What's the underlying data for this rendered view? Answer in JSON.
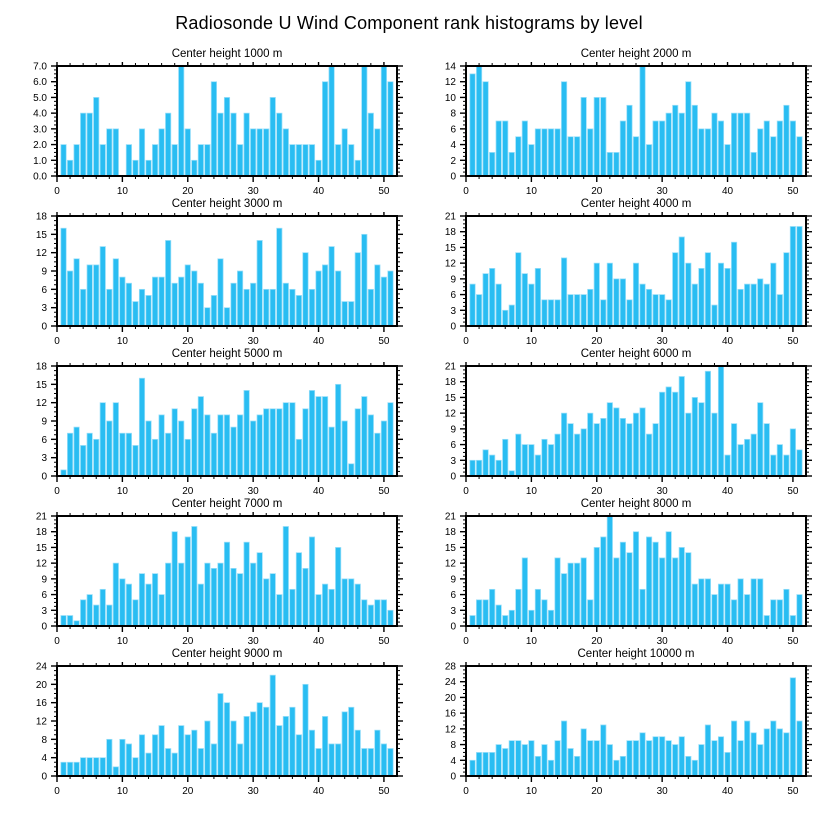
{
  "page_title": "Radiosonde U Wind Component rank histograms by level",
  "colors": {
    "bar": "#29BDF2",
    "bar_edge": "#9ADFF9",
    "axis": "#000000"
  },
  "chart_data": [
    {
      "type": "bar",
      "title": "Center height 1000 m",
      "xlabel": "",
      "ylabel": "",
      "xlim": [
        0,
        52
      ],
      "xticks": [
        0,
        10,
        20,
        30,
        40,
        50
      ],
      "x_minor_step": 2,
      "ylim": [
        0,
        7
      ],
      "ytick_labels": [
        "0.0",
        "1.0",
        "2.0",
        "3.0",
        "4.0",
        "5.0",
        "6.0",
        "7.0"
      ],
      "grid": false,
      "legend": false,
      "categories_note": "ranks 1-51",
      "values": [
        2,
        1,
        2,
        4,
        4,
        5,
        2,
        3,
        3,
        0,
        2,
        1,
        3,
        1,
        2,
        3,
        4,
        2,
        7,
        3,
        1,
        2,
        2,
        6,
        4,
        5,
        4,
        2,
        4,
        3,
        3,
        3,
        5,
        4,
        3,
        2,
        2,
        2,
        2,
        1,
        6,
        7,
        2,
        3,
        2,
        1,
        7,
        4,
        3,
        7,
        6
      ]
    },
    {
      "type": "bar",
      "title": "Center height 2000 m",
      "xlabel": "",
      "ylabel": "",
      "xlim": [
        0,
        52
      ],
      "xticks": [
        0,
        10,
        20,
        30,
        40,
        50
      ],
      "x_minor_step": 2,
      "ylim": [
        0,
        14
      ],
      "ytick_labels": [
        "0",
        "2",
        "4",
        "6",
        "8",
        "10",
        "12",
        "14"
      ],
      "grid": false,
      "legend": false,
      "values": [
        13,
        14,
        12,
        3,
        7,
        7,
        3,
        5,
        7,
        4,
        6,
        6,
        6,
        6,
        12,
        5,
        5,
        10,
        6,
        10,
        10,
        3,
        3,
        7,
        9,
        5,
        14,
        4,
        7,
        7,
        8,
        9,
        8,
        12,
        9,
        6,
        6,
        8,
        7,
        4,
        8,
        8,
        8,
        3,
        6,
        7,
        5,
        7,
        9,
        7,
        5
      ]
    },
    {
      "type": "bar",
      "title": "Center height 3000 m",
      "xlabel": "",
      "ylabel": "",
      "xlim": [
        0,
        52
      ],
      "xticks": [
        0,
        10,
        20,
        30,
        40,
        50
      ],
      "x_minor_step": 2,
      "ylim": [
        0,
        18
      ],
      "ytick_labels": [
        "0",
        "3",
        "6",
        "9",
        "12",
        "15",
        "18"
      ],
      "grid": false,
      "legend": false,
      "values": [
        16,
        9,
        11,
        6,
        10,
        10,
        13,
        6,
        11,
        8,
        7,
        4,
        6,
        5,
        8,
        8,
        14,
        7,
        8,
        10,
        9,
        7,
        3,
        5,
        11,
        3,
        7,
        9,
        6,
        7,
        14,
        6,
        6,
        16,
        7,
        6,
        5,
        12,
        6,
        9,
        10,
        13,
        9,
        4,
        4,
        12,
        15,
        6,
        10,
        8,
        9
      ]
    },
    {
      "type": "bar",
      "title": "Center height 4000 m",
      "xlabel": "",
      "ylabel": "",
      "xlim": [
        0,
        52
      ],
      "xticks": [
        0,
        10,
        20,
        30,
        40,
        50
      ],
      "x_minor_step": 2,
      "ylim": [
        0,
        21
      ],
      "ytick_labels": [
        "0",
        "3",
        "6",
        "9",
        "12",
        "15",
        "18",
        "21"
      ],
      "grid": false,
      "legend": false,
      "values": [
        8,
        6,
        10,
        11,
        8,
        3,
        4,
        14,
        10,
        8,
        11,
        5,
        5,
        5,
        13,
        6,
        6,
        6,
        7,
        12,
        5,
        12,
        9,
        9,
        5,
        12,
        8,
        7,
        6,
        6,
        5,
        14,
        17,
        12,
        8,
        11,
        14,
        4,
        12,
        11,
        16,
        7,
        8,
        8,
        9,
        8,
        12,
        6,
        14,
        19,
        19
      ]
    },
    {
      "type": "bar",
      "title": "Center height 5000 m",
      "xlabel": "",
      "ylabel": "",
      "xlim": [
        0,
        52
      ],
      "xticks": [
        0,
        10,
        20,
        30,
        40,
        50
      ],
      "x_minor_step": 2,
      "ylim": [
        0,
        18
      ],
      "ytick_labels": [
        "0",
        "3",
        "6",
        "9",
        "12",
        "15",
        "18"
      ],
      "grid": false,
      "legend": false,
      "values": [
        1,
        7,
        8,
        5,
        7,
        6,
        12,
        9,
        12,
        7,
        7,
        5,
        16,
        9,
        6,
        10,
        7,
        11,
        9,
        6,
        11,
        13,
        10,
        7,
        10,
        10,
        8,
        10,
        14,
        9,
        10,
        11,
        11,
        11,
        12,
        12,
        6,
        11,
        14,
        13,
        13,
        8,
        15,
        9,
        2,
        11,
        13,
        10,
        7,
        9,
        12
      ]
    },
    {
      "type": "bar",
      "title": "Center height 6000 m",
      "xlabel": "",
      "ylabel": "",
      "xlim": [
        0,
        52
      ],
      "xticks": [
        0,
        10,
        20,
        30,
        40,
        50
      ],
      "x_minor_step": 2,
      "ylim": [
        0,
        21
      ],
      "ytick_labels": [
        "0",
        "3",
        "6",
        "9",
        "12",
        "15",
        "18",
        "21"
      ],
      "grid": false,
      "legend": false,
      "values": [
        3,
        3,
        5,
        4,
        3,
        7,
        1,
        8,
        6,
        6,
        4,
        7,
        6,
        8,
        12,
        10,
        8,
        9,
        12,
        10,
        11,
        14,
        13,
        11,
        10,
        12,
        13,
        8,
        10,
        16,
        17,
        16,
        19,
        12,
        15,
        14,
        20,
        12,
        21,
        4,
        10,
        6,
        7,
        8,
        14,
        10,
        4,
        6,
        4,
        9,
        5
      ]
    },
    {
      "type": "bar",
      "title": "Center height 7000 m",
      "xlabel": "",
      "ylabel": "",
      "xlim": [
        0,
        52
      ],
      "xticks": [
        0,
        10,
        20,
        30,
        40,
        50
      ],
      "x_minor_step": 2,
      "ylim": [
        0,
        21
      ],
      "ytick_labels": [
        "0",
        "3",
        "6",
        "9",
        "12",
        "15",
        "18",
        "21"
      ],
      "grid": false,
      "legend": false,
      "values": [
        2,
        2,
        1,
        5,
        6,
        4,
        7,
        4,
        12,
        9,
        8,
        5,
        10,
        8,
        10,
        6,
        12,
        18,
        12,
        17,
        19,
        8,
        12,
        11,
        12,
        16,
        11,
        10,
        16,
        12,
        14,
        9,
        10,
        6,
        19,
        7,
        14,
        11,
        17,
        6,
        8,
        7,
        15,
        9,
        9,
        8,
        5,
        4,
        5,
        5,
        3
      ]
    },
    {
      "type": "bar",
      "title": "Center height 8000 m",
      "xlabel": "",
      "ylabel": "",
      "xlim": [
        0,
        52
      ],
      "xticks": [
        0,
        10,
        20,
        30,
        40,
        50
      ],
      "x_minor_step": 2,
      "ylim": [
        0,
        21
      ],
      "ytick_labels": [
        "0",
        "3",
        "6",
        "9",
        "12",
        "15",
        "18",
        "21"
      ],
      "grid": false,
      "legend": false,
      "values": [
        2,
        5,
        5,
        7,
        4,
        2,
        3,
        7,
        13,
        3,
        7,
        5,
        3,
        13,
        10,
        12,
        12,
        13,
        5,
        15,
        17,
        21,
        13,
        16,
        14,
        18,
        7,
        17,
        16,
        13,
        18,
        13,
        15,
        14,
        8,
        9,
        9,
        6,
        8,
        8,
        5,
        9,
        6,
        9,
        9,
        2,
        5,
        5,
        7,
        2,
        6
      ]
    },
    {
      "type": "bar",
      "title": "Center height 9000 m",
      "xlabel": "",
      "ylabel": "",
      "xlim": [
        0,
        52
      ],
      "xticks": [
        0,
        10,
        20,
        30,
        40,
        50
      ],
      "x_minor_step": 2,
      "ylim": [
        0,
        24
      ],
      "ytick_labels": [
        "0",
        "4",
        "8",
        "12",
        "16",
        "20",
        "24"
      ],
      "grid": false,
      "legend": false,
      "values": [
        3,
        3,
        3,
        4,
        4,
        4,
        4,
        8,
        2,
        8,
        7,
        4,
        9,
        5,
        9,
        11,
        6,
        5,
        11,
        9,
        10,
        6,
        12,
        7,
        18,
        16,
        12,
        7,
        13,
        14,
        16,
        15,
        22,
        11,
        13,
        15,
        9,
        20,
        10,
        6,
        13,
        7,
        7,
        14,
        15,
        10,
        6,
        6,
        10,
        7,
        6
      ]
    },
    {
      "type": "bar",
      "title": "Center height 10000 m",
      "xlabel": "",
      "ylabel": "",
      "xlim": [
        0,
        52
      ],
      "xticks": [
        0,
        10,
        20,
        30,
        40,
        50
      ],
      "x_minor_step": 2,
      "ylim": [
        0,
        28
      ],
      "ytick_labels": [
        "0",
        "4",
        "8",
        "12",
        "16",
        "20",
        "24",
        "28"
      ],
      "grid": false,
      "legend": false,
      "values": [
        4,
        6,
        6,
        6,
        8,
        7,
        9,
        9,
        8,
        9,
        5,
        8,
        4,
        9,
        14,
        7,
        5,
        12,
        9,
        9,
        13,
        8,
        4,
        5,
        9,
        9,
        11,
        9,
        10,
        10,
        9,
        8,
        10,
        5,
        4,
        8,
        13,
        9,
        10,
        6,
        14,
        9,
        14,
        11,
        8,
        12,
        14,
        12,
        11,
        25,
        14
      ]
    }
  ]
}
